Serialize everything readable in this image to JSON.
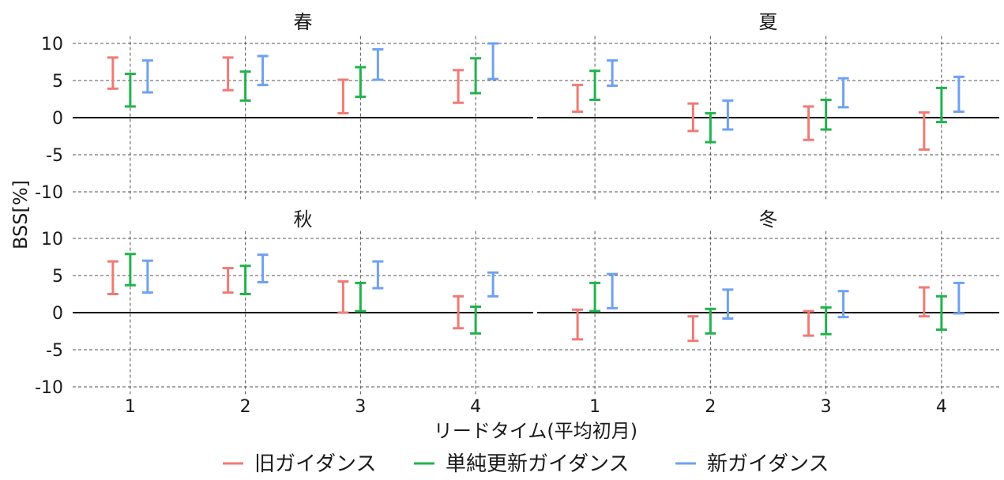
{
  "chart_data": {
    "type": "errorbar",
    "ylabel": "BSS[%]",
    "xlabel": "リードタイム(平均初月)",
    "categories": [
      "1",
      "2",
      "3",
      "4"
    ],
    "ylim": [
      -11,
      11
    ],
    "yticks": [
      10,
      5,
      0,
      -5,
      -10
    ],
    "ytick_labels": [
      "10",
      "5",
      "0",
      "-5",
      "-10"
    ],
    "grid": true,
    "legend_position": "bottom",
    "series": [
      {
        "name": "旧ガイダンス",
        "color": "#f07a74"
      },
      {
        "name": "単純更新ガイダンス",
        "color": "#22b24c"
      },
      {
        "name": "新ガイダンス",
        "color": "#6fa1f0"
      }
    ],
    "panels": [
      {
        "title": "春",
        "intervals": [
          [
            [
              3.9,
              8.1
            ],
            [
              3.7,
              8.1
            ],
            [
              0.6,
              5.1
            ],
            [
              2.0,
              6.4
            ]
          ],
          [
            [
              1.5,
              5.9
            ],
            [
              2.3,
              6.2
            ],
            [
              2.8,
              6.8
            ],
            [
              3.3,
              8.0
            ]
          ],
          [
            [
              3.4,
              7.7
            ],
            [
              4.4,
              8.3
            ],
            [
              5.1,
              9.2
            ],
            [
              5.2,
              10.0
            ]
          ]
        ]
      },
      {
        "title": "夏",
        "intervals": [
          [
            [
              0.8,
              4.4
            ],
            [
              -1.8,
              1.9
            ],
            [
              -3.0,
              1.5
            ],
            [
              -4.3,
              0.7
            ]
          ],
          [
            [
              2.4,
              6.3
            ],
            [
              -3.3,
              0.6
            ],
            [
              -1.6,
              2.4
            ],
            [
              -0.6,
              4.0
            ]
          ],
          [
            [
              4.3,
              7.7
            ],
            [
              -1.6,
              2.3
            ],
            [
              1.4,
              5.3
            ],
            [
              0.8,
              5.5
            ]
          ]
        ]
      },
      {
        "title": "秋",
        "intervals": [
          [
            [
              2.5,
              6.9
            ],
            [
              2.7,
              6.0
            ],
            [
              0.0,
              4.2
            ],
            [
              -2.1,
              2.2
            ]
          ],
          [
            [
              3.7,
              7.9
            ],
            [
              2.5,
              6.3
            ],
            [
              0.2,
              4.0
            ],
            [
              -2.8,
              0.8
            ]
          ],
          [
            [
              2.7,
              7.0
            ],
            [
              4.1,
              7.8
            ],
            [
              3.3,
              6.9
            ],
            [
              2.2,
              5.4
            ]
          ]
        ]
      },
      {
        "title": "冬",
        "intervals": [
          [
            [
              -3.6,
              0.4
            ],
            [
              -3.8,
              -0.5
            ],
            [
              -3.1,
              0.2
            ],
            [
              -0.5,
              3.4
            ]
          ],
          [
            [
              0.2,
              4.0
            ],
            [
              -2.8,
              0.5
            ],
            [
              -2.9,
              0.7
            ],
            [
              -2.3,
              2.2
            ]
          ],
          [
            [
              0.6,
              5.2
            ],
            [
              -0.8,
              3.1
            ],
            [
              -0.6,
              2.9
            ],
            [
              -0.1,
              4.0
            ]
          ]
        ]
      }
    ]
  }
}
